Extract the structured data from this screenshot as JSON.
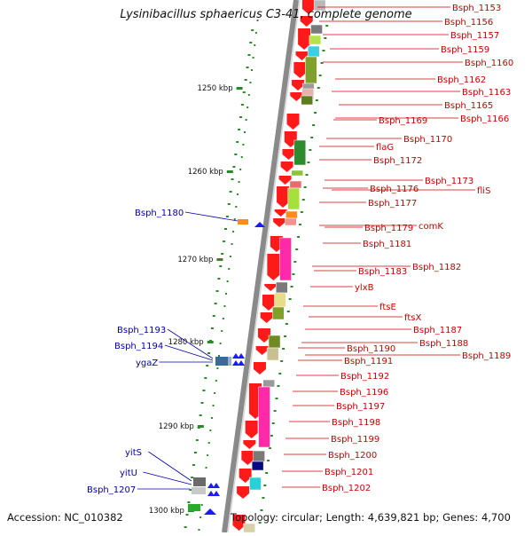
{
  "title": "Lysinibacillus sphaericus C3-41, complete genome",
  "footer": {
    "accession": "Accession: NC_010382",
    "topology": "Topology: circular; Length: 4,639,821 bp; Genes: 4,700"
  },
  "colors": {
    "forward_label": "#cc0000",
    "reverse_label": "#0000aa",
    "forward_gene": "#ff1a1a",
    "reverse_gene": "#1a1aff",
    "backbone": "#8a8a8a",
    "tick": "#2a8a2a"
  },
  "scale_ticks": [
    "1250 kbp",
    "1260 kbp",
    "1270 kbp",
    "1280 kbp",
    "1290 kbp",
    "1300 kbp"
  ],
  "forward_labels": [
    "Bsph_1153",
    "Bsph_1156",
    "Bsph_1157",
    "Bsph_1159",
    "Bsph_1160",
    "Bsph_1162",
    "Bsph_1163",
    "Bsph_1165",
    "Bsph_1166",
    "Bsph_1169",
    "Bsph_1170",
    "flaG",
    "Bsph_1172",
    "Bsph_1173",
    "fliS",
    "Bsph_1176",
    "Bsph_1177",
    "comK",
    "Bsph_1179",
    "Bsph_1181",
    "Bsph_1182",
    "Bsph_1183",
    "ylxB",
    "ftsE",
    "ftsX",
    "Bsph_1187",
    "Bsph_1188",
    "Bsph_1189",
    "Bsph_1190",
    "Bsph_1191",
    "Bsph_1192",
    "Bsph_1196",
    "Bsph_1197",
    "Bsph_1198",
    "Bsph_1199",
    "Bsph_1200",
    "Bsph_1201",
    "Bsph_1202"
  ],
  "reverse_labels": [
    "Bsph_1180",
    "Bsph_1193",
    "Bsph_1194",
    "ygaZ",
    "yitS",
    "yitU",
    "Bsph_1207"
  ]
}
